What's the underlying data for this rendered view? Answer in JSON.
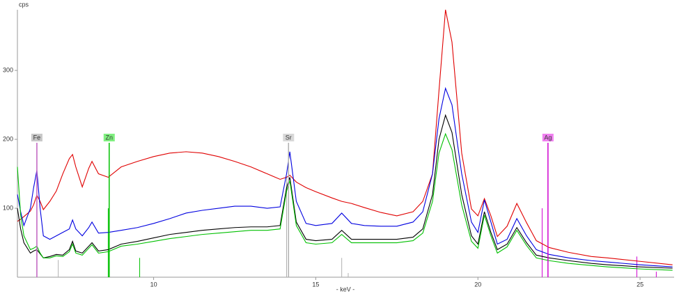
{
  "chart_data": {
    "type": "line",
    "y_label": "cps",
    "x_label": "- keV -",
    "xlim": [
      5.8,
      26.05
    ],
    "ylim": [
      0,
      388
    ],
    "xticks": [
      10,
      15,
      20,
      25
    ],
    "yticks": [
      100,
      200,
      300
    ],
    "x": [
      5.8,
      5.9,
      6.0,
      6.2,
      6.3,
      6.4,
      6.5,
      6.6,
      6.8,
      7.0,
      7.2,
      7.4,
      7.5,
      7.6,
      7.8,
      8.0,
      8.1,
      8.3,
      8.6,
      9.0,
      9.5,
      10,
      10.5,
      11,
      11.5,
      12,
      12.5,
      13,
      13.5,
      13.9,
      14.1,
      14.2,
      14.4,
      14.7,
      15.0,
      15.5,
      15.8,
      16.1,
      16.5,
      17,
      17.5,
      18,
      18.3,
      18.6,
      18.8,
      19.0,
      19.2,
      19.5,
      19.8,
      20.0,
      20.2,
      20.4,
      20.6,
      20.9,
      21.2,
      21.5,
      21.8,
      22.2,
      22.8,
      23.5,
      24,
      25,
      26
    ],
    "series": [
      {
        "color": "#e00000",
        "values": [
          81,
          84,
          88,
          96,
          105,
          119,
          110,
          98,
          110,
          125,
          150,
          172,
          178,
          160,
          131,
          158,
          168,
          150,
          145,
          160,
          168,
          175,
          180,
          182,
          180,
          175,
          168,
          160,
          150,
          142,
          145,
          148,
          138,
          130,
          124,
          115,
          110,
          107,
          101,
          94,
          89,
          95,
          110,
          150,
          271,
          388,
          341,
          180,
          99,
          89,
          114,
          89,
          59,
          74,
          107,
          79,
          53,
          43,
          36,
          30,
          28,
          23,
          18
        ]
      },
      {
        "color": "#0000e0",
        "values": [
          120,
          95,
          75,
          100,
          130,
          155,
          100,
          60,
          55,
          60,
          65,
          70,
          83,
          70,
          60,
          72,
          80,
          64,
          65,
          68,
          72,
          78,
          85,
          93,
          97,
          100,
          103,
          103,
          100,
          102,
          150,
          182,
          110,
          78,
          75,
          78,
          93,
          78,
          75,
          74,
          74,
          80,
          95,
          150,
          230,
          274,
          250,
          150,
          80,
          65,
          112,
          80,
          48,
          55,
          85,
          60,
          40,
          33,
          28,
          24,
          22,
          18,
          15
        ]
      },
      {
        "color": "#000000",
        "values": [
          100,
          70,
          50,
          35,
          38,
          40,
          34,
          28,
          30,
          33,
          32,
          40,
          52,
          38,
          35,
          45,
          50,
          38,
          40,
          48,
          52,
          57,
          62,
          65,
          68,
          70,
          72,
          73,
          73,
          75,
          130,
          145,
          80,
          55,
          53,
          55,
          68,
          55,
          55,
          55,
          55,
          58,
          70,
          120,
          200,
          235,
          210,
          120,
          60,
          48,
          95,
          65,
          40,
          48,
          72,
          50,
          32,
          28,
          24,
          20,
          18,
          15,
          13
        ]
      },
      {
        "color": "#00c000",
        "values": [
          160,
          90,
          60,
          40,
          42,
          45,
          35,
          28,
          28,
          31,
          30,
          37,
          48,
          35,
          32,
          42,
          47,
          35,
          37,
          45,
          48,
          52,
          56,
          59,
          62,
          64,
          66,
          68,
          68,
          70,
          125,
          140,
          75,
          50,
          48,
          50,
          62,
          50,
          50,
          50,
          50,
          53,
          64,
          110,
          180,
          208,
          185,
          105,
          52,
          42,
          90,
          60,
          35,
          44,
          68,
          46,
          28,
          24,
          20,
          17,
          15,
          12,
          10
        ]
      }
    ],
    "markers": [
      {
        "label": "Fe",
        "x": 6.4,
        "height": 195,
        "color": "#c8c8c8",
        "line": "#c060c0"
      },
      {
        "label": "Zn",
        "x": 8.63,
        "height": 195,
        "color": "#80f080",
        "line": "#00c000"
      },
      {
        "label": "Sr",
        "x": 14.16,
        "height": 195,
        "color": "#d8d8d8",
        "line": "#b0b0b0"
      },
      {
        "label": "Ag",
        "x": 22.16,
        "height": 195,
        "color": "#f080f0",
        "line": "#d000d0"
      }
    ],
    "minor_lines": [
      {
        "x": 7.06,
        "height": 25,
        "color": "#b0b0b0"
      },
      {
        "x": 14.1,
        "height": 145,
        "color": "#b0b0b0"
      },
      {
        "x": 15.8,
        "height": 28,
        "color": "#b0b0b0"
      },
      {
        "x": 16.0,
        "height": 6,
        "color": "#b0b0b0"
      },
      {
        "x": 8.6,
        "height": 100,
        "color": "#00c000"
      },
      {
        "x": 9.57,
        "height": 28,
        "color": "#00c000"
      },
      {
        "x": 21.98,
        "height": 100,
        "color": "#d000d0"
      },
      {
        "x": 24.9,
        "height": 30,
        "color": "#d000d0"
      },
      {
        "x": 25.5,
        "height": 8,
        "color": "#d000d0"
      }
    ]
  }
}
